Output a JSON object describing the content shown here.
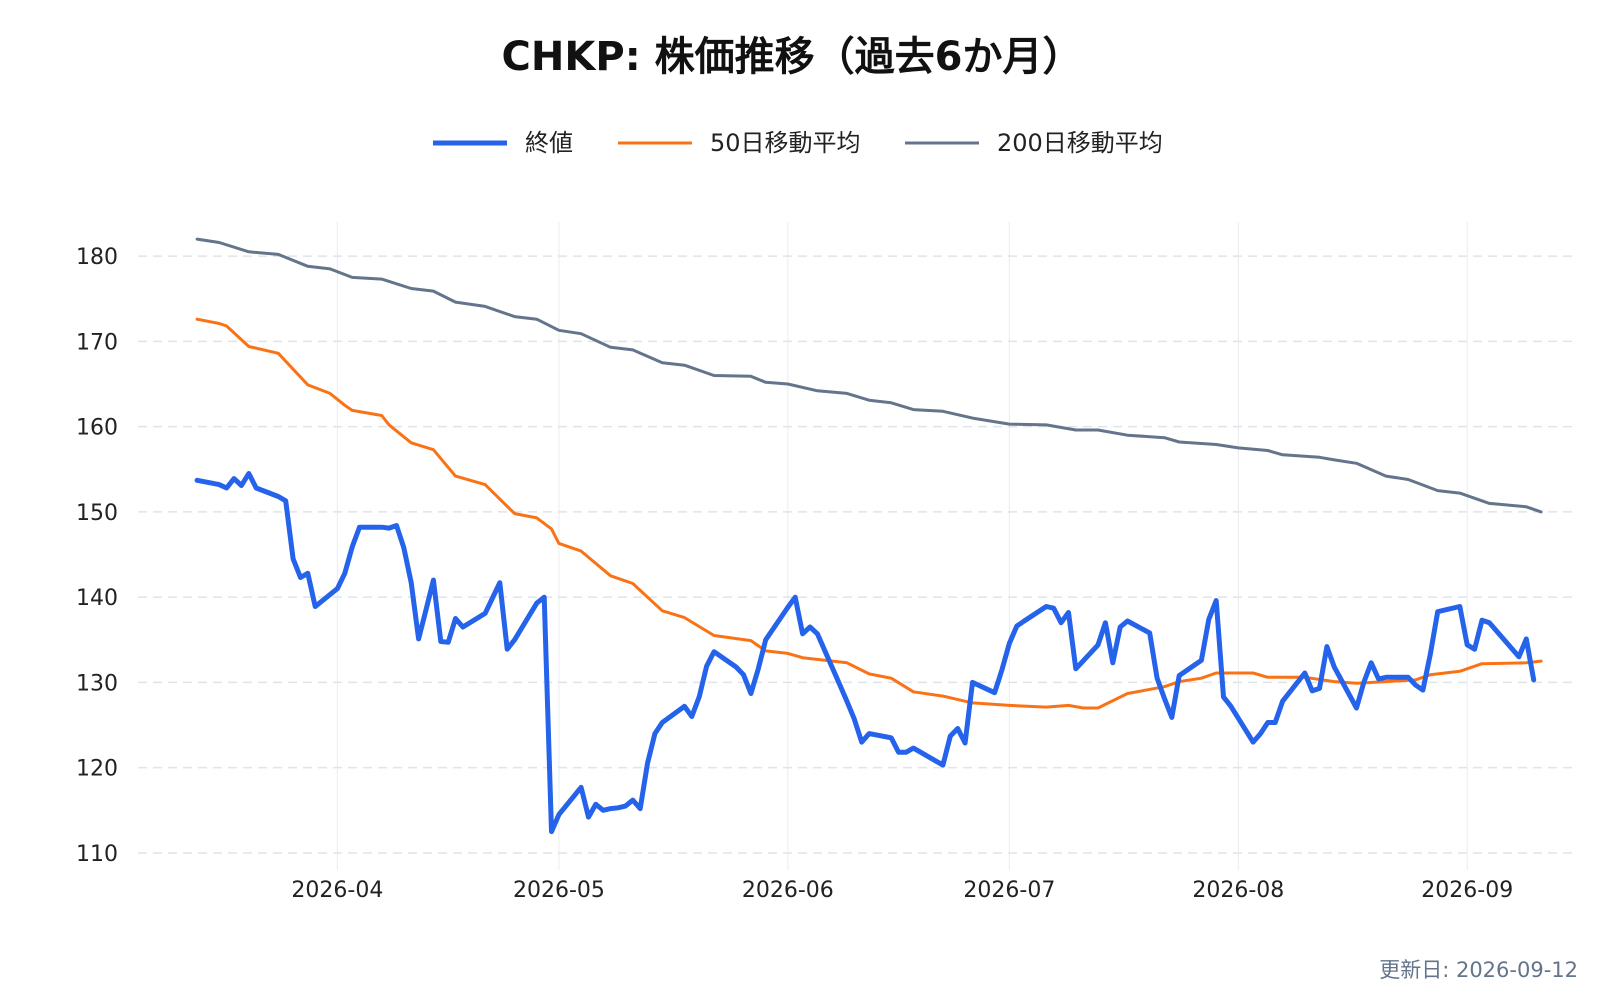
{
  "chart_data": {
    "type": "line",
    "title": "CHKP: 株価推移（過去6か月）",
    "xlabel": "",
    "ylabel": "",
    "ylim": [
      108,
      184
    ],
    "xlim": [
      "2026-03-05",
      "2026-09-16"
    ],
    "yticks": [
      110,
      120,
      130,
      140,
      150,
      160,
      170,
      180
    ],
    "xticks": [
      "2026-04-01",
      "2026-05-01",
      "2026-06-01",
      "2026-07-01",
      "2026-08-01",
      "2026-09-01"
    ],
    "xtick_labels": [
      "2026-04",
      "2026-05",
      "2026-06",
      "2026-07",
      "2026-08",
      "2026-09"
    ],
    "grid": true,
    "legend_position": "top-center",
    "footer": "更新日: 2026-09-12",
    "series": [
      {
        "name": "終値",
        "color": "#2563eb",
        "points": [
          [
            "2026-03-13",
            153.7
          ],
          [
            "2026-03-16",
            153.2
          ],
          [
            "2026-03-17",
            152.8
          ],
          [
            "2026-03-18",
            153.9
          ],
          [
            "2026-03-19",
            153.1
          ],
          [
            "2026-03-20",
            154.5
          ],
          [
            "2026-03-21",
            152.8
          ],
          [
            "2026-03-24",
            151.8
          ],
          [
            "2026-03-25",
            151.3
          ],
          [
            "2026-03-26",
            144.5
          ],
          [
            "2026-03-27",
            142.3
          ],
          [
            "2026-03-28",
            142.8
          ],
          [
            "2026-03-29",
            138.9
          ],
          [
            "2026-03-30",
            139.6
          ],
          [
            "2026-03-31",
            140.3
          ],
          [
            "2026-04-01",
            141.0
          ],
          [
            "2026-04-02",
            142.8
          ],
          [
            "2026-04-03",
            145.9
          ],
          [
            "2026-04-04",
            148.2
          ],
          [
            "2026-04-07",
            148.2
          ],
          [
            "2026-04-08",
            148.1
          ],
          [
            "2026-04-09",
            148.4
          ],
          [
            "2026-04-10",
            145.8
          ],
          [
            "2026-04-11",
            141.7
          ],
          [
            "2026-04-12",
            135.1
          ],
          [
            "2026-04-13",
            138.5
          ],
          [
            "2026-04-14",
            142.0
          ],
          [
            "2026-04-15",
            134.8
          ],
          [
            "2026-04-16",
            134.7
          ],
          [
            "2026-04-17",
            137.5
          ],
          [
            "2026-04-18",
            136.5
          ],
          [
            "2026-04-21",
            138.1
          ],
          [
            "2026-04-22",
            139.9
          ],
          [
            "2026-04-23",
            141.7
          ],
          [
            "2026-04-24",
            133.9
          ],
          [
            "2026-04-25",
            135.0
          ],
          [
            "2026-04-28",
            139.3
          ],
          [
            "2026-04-29",
            140.0
          ],
          [
            "2026-04-30",
            112.5
          ],
          [
            "2026-05-01",
            114.5
          ],
          [
            "2026-05-04",
            117.7
          ],
          [
            "2026-05-05",
            114.2
          ],
          [
            "2026-05-06",
            115.7
          ],
          [
            "2026-05-07",
            115.0
          ],
          [
            "2026-05-08",
            115.2
          ],
          [
            "2026-05-09",
            115.3
          ],
          [
            "2026-05-10",
            115.5
          ],
          [
            "2026-05-11",
            116.2
          ],
          [
            "2026-05-12",
            115.2
          ],
          [
            "2026-05-13",
            120.5
          ],
          [
            "2026-05-14",
            124.0
          ],
          [
            "2026-05-15",
            125.3
          ],
          [
            "2026-05-18",
            127.2
          ],
          [
            "2026-05-19",
            126.0
          ],
          [
            "2026-05-20",
            128.3
          ],
          [
            "2026-05-21",
            131.9
          ],
          [
            "2026-05-22",
            133.6
          ],
          [
            "2026-05-25",
            131.8
          ],
          [
            "2026-05-26",
            130.9
          ],
          [
            "2026-05-27",
            128.7
          ],
          [
            "2026-05-28",
            131.6
          ],
          [
            "2026-05-29",
            135.0
          ],
          [
            "2026-06-01",
            138.8
          ],
          [
            "2026-06-02",
            140.0
          ],
          [
            "2026-06-03",
            135.7
          ],
          [
            "2026-06-04",
            136.5
          ],
          [
            "2026-06-05",
            135.7
          ],
          [
            "2026-06-08",
            129.8
          ],
          [
            "2026-06-09",
            127.8
          ],
          [
            "2026-06-10",
            125.7
          ],
          [
            "2026-06-11",
            123.0
          ],
          [
            "2026-06-12",
            124.0
          ],
          [
            "2026-06-15",
            123.5
          ],
          [
            "2026-06-16",
            121.8
          ],
          [
            "2026-06-17",
            121.8
          ],
          [
            "2026-06-18",
            122.3
          ],
          [
            "2026-06-22",
            120.3
          ],
          [
            "2026-06-23",
            123.7
          ],
          [
            "2026-06-24",
            124.6
          ],
          [
            "2026-06-25",
            122.9
          ],
          [
            "2026-06-26",
            130.0
          ],
          [
            "2026-06-29",
            128.8
          ],
          [
            "2026-06-30",
            131.5
          ],
          [
            "2026-07-01",
            134.6
          ],
          [
            "2026-07-02",
            136.6
          ],
          [
            "2026-07-03",
            137.2
          ],
          [
            "2026-07-06",
            138.9
          ],
          [
            "2026-07-07",
            138.7
          ],
          [
            "2026-07-08",
            137.0
          ],
          [
            "2026-07-09",
            138.2
          ],
          [
            "2026-07-10",
            131.6
          ],
          [
            "2026-07-13",
            134.4
          ],
          [
            "2026-07-14",
            137.0
          ],
          [
            "2026-07-15",
            132.3
          ],
          [
            "2026-07-16",
            136.5
          ],
          [
            "2026-07-17",
            137.2
          ],
          [
            "2026-07-20",
            135.8
          ],
          [
            "2026-07-21",
            130.5
          ],
          [
            "2026-07-22",
            128.1
          ],
          [
            "2026-07-23",
            125.9
          ],
          [
            "2026-07-24",
            130.8
          ],
          [
            "2026-07-27",
            132.6
          ],
          [
            "2026-07-28",
            137.4
          ],
          [
            "2026-07-29",
            139.6
          ],
          [
            "2026-07-30",
            128.3
          ],
          [
            "2026-07-31",
            127.2
          ],
          [
            "2026-08-03",
            123.0
          ],
          [
            "2026-08-04",
            124.0
          ],
          [
            "2026-08-05",
            125.3
          ],
          [
            "2026-08-06",
            125.3
          ],
          [
            "2026-08-07",
            127.8
          ],
          [
            "2026-08-10",
            131.1
          ],
          [
            "2026-08-11",
            129.0
          ],
          [
            "2026-08-12",
            129.3
          ],
          [
            "2026-08-13",
            134.2
          ],
          [
            "2026-08-14",
            131.8
          ],
          [
            "2026-08-17",
            127.0
          ],
          [
            "2026-08-18",
            130.0
          ],
          [
            "2026-08-19",
            132.3
          ],
          [
            "2026-08-20",
            130.4
          ],
          [
            "2026-08-21",
            130.6
          ],
          [
            "2026-08-24",
            130.6
          ],
          [
            "2026-08-25",
            129.7
          ],
          [
            "2026-08-26",
            129.1
          ],
          [
            "2026-08-27",
            133.3
          ],
          [
            "2026-08-28",
            138.3
          ],
          [
            "2026-08-31",
            138.9
          ],
          [
            "2026-09-01",
            134.4
          ],
          [
            "2026-09-02",
            133.9
          ],
          [
            "2026-09-03",
            137.3
          ],
          [
            "2026-09-04",
            137.0
          ],
          [
            "2026-09-08",
            133.0
          ],
          [
            "2026-09-09",
            135.1
          ],
          [
            "2026-09-10",
            130.3
          ]
        ]
      },
      {
        "name": "50日移動平均",
        "color": "#f97316",
        "points": [
          [
            "2026-03-13",
            172.6
          ],
          [
            "2026-03-16",
            172.1
          ],
          [
            "2026-03-17",
            171.8
          ],
          [
            "2026-03-20",
            169.4
          ],
          [
            "2026-03-24",
            168.6
          ],
          [
            "2026-03-28",
            164.9
          ],
          [
            "2026-03-31",
            163.9
          ],
          [
            "2026-04-02",
            162.5
          ],
          [
            "2026-04-03",
            161.9
          ],
          [
            "2026-04-07",
            161.3
          ],
          [
            "2026-04-08",
            160.2
          ],
          [
            "2026-04-11",
            158.1
          ],
          [
            "2026-04-14",
            157.3
          ],
          [
            "2026-04-17",
            154.2
          ],
          [
            "2026-04-21",
            153.2
          ],
          [
            "2026-04-25",
            149.8
          ],
          [
            "2026-04-28",
            149.3
          ],
          [
            "2026-04-30",
            148.0
          ],
          [
            "2026-05-01",
            146.3
          ],
          [
            "2026-05-04",
            145.4
          ],
          [
            "2026-05-08",
            142.5
          ],
          [
            "2026-05-11",
            141.6
          ],
          [
            "2026-05-15",
            138.4
          ],
          [
            "2026-05-18",
            137.6
          ],
          [
            "2026-05-22",
            135.5
          ],
          [
            "2026-05-27",
            134.9
          ],
          [
            "2026-05-29",
            133.7
          ],
          [
            "2026-06-01",
            133.4
          ],
          [
            "2026-06-03",
            132.9
          ],
          [
            "2026-06-09",
            132.3
          ],
          [
            "2026-06-12",
            131.0
          ],
          [
            "2026-06-15",
            130.5
          ],
          [
            "2026-06-18",
            128.9
          ],
          [
            "2026-06-22",
            128.4
          ],
          [
            "2026-06-26",
            127.6
          ],
          [
            "2026-07-01",
            127.3
          ],
          [
            "2026-07-06",
            127.1
          ],
          [
            "2026-07-09",
            127.3
          ],
          [
            "2026-07-11",
            127.0
          ],
          [
            "2026-07-13",
            127.0
          ],
          [
            "2026-07-17",
            128.7
          ],
          [
            "2026-07-22",
            129.5
          ],
          [
            "2026-07-24",
            130.1
          ],
          [
            "2026-07-27",
            130.5
          ],
          [
            "2026-07-29",
            131.1
          ],
          [
            "2026-08-01",
            131.1
          ],
          [
            "2026-08-03",
            131.1
          ],
          [
            "2026-08-05",
            130.6
          ],
          [
            "2026-08-10",
            130.6
          ],
          [
            "2026-08-14",
            130.1
          ],
          [
            "2026-08-17",
            129.9
          ],
          [
            "2026-08-21",
            130.1
          ],
          [
            "2026-08-25",
            130.3
          ],
          [
            "2026-08-27",
            130.9
          ],
          [
            "2026-08-31",
            131.3
          ],
          [
            "2026-09-03",
            132.2
          ],
          [
            "2026-09-09",
            132.3
          ],
          [
            "2026-09-11",
            132.5
          ]
        ]
      },
      {
        "name": "200日移動平均",
        "color": "#64748b",
        "points": [
          [
            "2026-03-13",
            182.0
          ],
          [
            "2026-03-16",
            181.6
          ],
          [
            "2026-03-20",
            180.5
          ],
          [
            "2026-03-24",
            180.2
          ],
          [
            "2026-03-28",
            178.8
          ],
          [
            "2026-03-31",
            178.5
          ],
          [
            "2026-04-03",
            177.5
          ],
          [
            "2026-04-07",
            177.3
          ],
          [
            "2026-04-11",
            176.2
          ],
          [
            "2026-04-14",
            175.9
          ],
          [
            "2026-04-17",
            174.6
          ],
          [
            "2026-04-21",
            174.1
          ],
          [
            "2026-04-25",
            172.9
          ],
          [
            "2026-04-28",
            172.6
          ],
          [
            "2026-05-01",
            171.3
          ],
          [
            "2026-05-04",
            170.9
          ],
          [
            "2026-05-08",
            169.3
          ],
          [
            "2026-05-11",
            169.0
          ],
          [
            "2026-05-15",
            167.5
          ],
          [
            "2026-05-18",
            167.2
          ],
          [
            "2026-05-22",
            166.0
          ],
          [
            "2026-05-27",
            165.9
          ],
          [
            "2026-05-29",
            165.2
          ],
          [
            "2026-06-01",
            165.0
          ],
          [
            "2026-06-05",
            164.2
          ],
          [
            "2026-06-09",
            163.9
          ],
          [
            "2026-06-12",
            163.1
          ],
          [
            "2026-06-15",
            162.8
          ],
          [
            "2026-06-18",
            162.0
          ],
          [
            "2026-06-22",
            161.8
          ],
          [
            "2026-06-26",
            161.0
          ],
          [
            "2026-07-01",
            160.3
          ],
          [
            "2026-07-06",
            160.2
          ],
          [
            "2026-07-10",
            159.6
          ],
          [
            "2026-07-13",
            159.6
          ],
          [
            "2026-07-17",
            159.0
          ],
          [
            "2026-07-22",
            158.7
          ],
          [
            "2026-07-24",
            158.2
          ],
          [
            "2026-07-29",
            157.9
          ],
          [
            "2026-08-01",
            157.5
          ],
          [
            "2026-08-05",
            157.2
          ],
          [
            "2026-08-07",
            156.7
          ],
          [
            "2026-08-12",
            156.4
          ],
          [
            "2026-08-14",
            156.1
          ],
          [
            "2026-08-17",
            155.7
          ],
          [
            "2026-08-21",
            154.2
          ],
          [
            "2026-08-24",
            153.8
          ],
          [
            "2026-08-28",
            152.5
          ],
          [
            "2026-08-31",
            152.2
          ],
          [
            "2026-09-04",
            151.0
          ],
          [
            "2026-09-09",
            150.6
          ],
          [
            "2026-09-11",
            150.0
          ]
        ]
      }
    ]
  }
}
